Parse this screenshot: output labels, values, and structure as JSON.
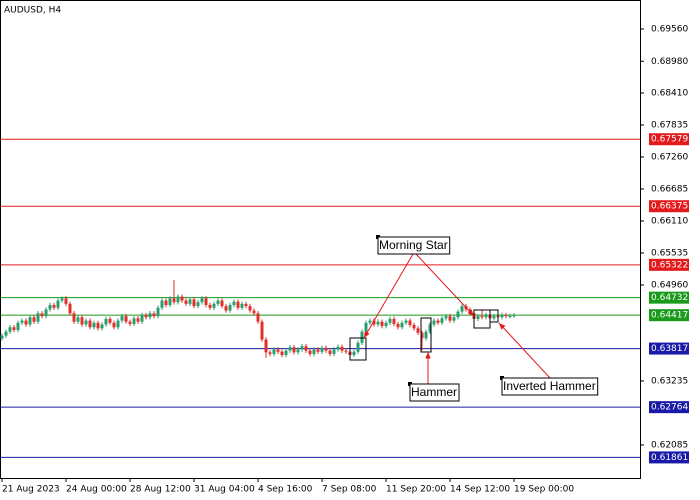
{
  "chart_data": {
    "type": "candlestick",
    "title": "AUDUSD, H4",
    "ylim": [
      0.61491,
      0.70081
    ],
    "yticks": [
      {
        "value": 0.6956,
        "label": "0.69560"
      },
      {
        "value": 0.6898,
        "label": "0.68980"
      },
      {
        "value": 0.6841,
        "label": "0.68410"
      },
      0.67835,
      {
        "value": 0.6726,
        "label": "0.67260"
      },
      0.66685,
      {
        "value": 0.6611,
        "label": "0.66110"
      },
      0.65535,
      {
        "value": 0.6496,
        "label": "0.64960"
      },
      0.63235,
      0.62085
    ],
    "levels": [
      {
        "value": 0.67579,
        "color": "#e31a1c"
      },
      {
        "value": 0.66375,
        "color": "#e31a1c"
      },
      {
        "value": 0.65322,
        "color": "#e31a1c"
      },
      {
        "value": 0.64732,
        "color": "#1a9a1a"
      },
      {
        "value": 0.64417,
        "color": "#1a9a1a"
      },
      {
        "value": 0.63817,
        "color": "#1a1aa8"
      },
      {
        "value": 0.62764,
        "color": "#1a1aa8"
      },
      {
        "value": 0.61861,
        "color": "#1a1aa8"
      }
    ],
    "up_color": "#2a9d6f",
    "down_color": "#e0302a",
    "annotations": [
      "Morning Star",
      "Hammer",
      "Inverted Hammer"
    ],
    "categories": [
      "21 Aug 2023",
      null,
      null,
      null,
      null,
      null,
      null,
      null,
      null,
      null,
      null,
      null,
      null,
      null,
      null,
      null,
      "24 Aug 00:00",
      null,
      null,
      null,
      null,
      null,
      null,
      null,
      null,
      null,
      null,
      null,
      null,
      null,
      null,
      null,
      "28 Aug 12:00",
      null,
      null,
      null,
      null,
      null,
      null,
      null,
      null,
      null,
      null,
      null,
      null,
      null,
      null,
      null,
      "31 Aug 04:00",
      null,
      null,
      null,
      null,
      null,
      null,
      null,
      null,
      null,
      null,
      null,
      null,
      null,
      null,
      null,
      "4 Sep 16:00",
      null,
      null,
      null,
      null,
      null,
      null,
      null,
      null,
      null,
      null,
      null,
      null,
      null,
      null,
      null,
      "7 Sep 08:00",
      null,
      null,
      null,
      null,
      null,
      null,
      null,
      null,
      null,
      null,
      null,
      null,
      null,
      null,
      null,
      "11 Sep 20:00",
      null,
      null,
      null,
      null,
      null,
      null,
      null,
      null,
      null,
      null,
      null,
      null,
      null,
      null,
      null,
      "14 Sep 12:00",
      null,
      null,
      null,
      null,
      null,
      null,
      null,
      null,
      null,
      null,
      null,
      null,
      null,
      null,
      null,
      "19 Sep 00:00"
    ],
    "ohlc": [
      [
        0.64,
        0.6409,
        0.6396,
        0.6405
      ],
      [
        0.6405,
        0.6416,
        0.6401,
        0.6412
      ],
      [
        0.6412,
        0.6424,
        0.6408,
        0.642
      ],
      [
        0.642,
        0.6424,
        0.6411,
        0.6415
      ],
      [
        0.6415,
        0.6432,
        0.6411,
        0.6428
      ],
      [
        0.6428,
        0.6436,
        0.6424,
        0.6432
      ],
      [
        0.6432,
        0.6436,
        0.6421,
        0.6425
      ],
      [
        0.6425,
        0.6442,
        0.6421,
        0.6438
      ],
      [
        0.6438,
        0.6442,
        0.6426,
        0.643
      ],
      [
        0.643,
        0.6449,
        0.6426,
        0.6445
      ],
      [
        0.6445,
        0.6449,
        0.6436,
        0.644
      ],
      [
        0.644,
        0.6456,
        0.6436,
        0.6452
      ],
      [
        0.6452,
        0.6464,
        0.6448,
        0.646
      ],
      [
        0.646,
        0.6464,
        0.6451,
        0.6455
      ],
      [
        0.6455,
        0.6472,
        0.6451,
        0.6468
      ],
      [
        0.6468,
        0.6476,
        0.6464,
        0.6472
      ],
      [
        0.6472,
        0.6476,
        0.6458,
        0.6462
      ],
      [
        0.6462,
        0.6466,
        0.6441,
        0.6445
      ],
      [
        0.6445,
        0.6449,
        0.6426,
        0.643
      ],
      [
        0.643,
        0.6442,
        0.6426,
        0.6438
      ],
      [
        0.6438,
        0.6442,
        0.6421,
        0.6425
      ],
      [
        0.6425,
        0.6436,
        0.6421,
        0.6432
      ],
      [
        0.6432,
        0.6436,
        0.6416,
        0.642
      ],
      [
        0.642,
        0.6432,
        0.6416,
        0.6428
      ],
      [
        0.6428,
        0.6432,
        0.6414,
        0.6418
      ],
      [
        0.6418,
        0.6429,
        0.6414,
        0.6425
      ],
      [
        0.6425,
        0.6439,
        0.6421,
        0.6435
      ],
      [
        0.6435,
        0.6439,
        0.6424,
        0.6428
      ],
      [
        0.6428,
        0.6432,
        0.6416,
        0.642
      ],
      [
        0.642,
        0.6436,
        0.6416,
        0.6432
      ],
      [
        0.6432,
        0.6444,
        0.6428,
        0.644
      ],
      [
        0.644,
        0.6444,
        0.6426,
        0.643
      ],
      [
        0.643,
        0.6434,
        0.6422,
        0.6426
      ],
      [
        0.6426,
        0.644,
        0.6422,
        0.6436
      ],
      [
        0.6436,
        0.644,
        0.6426,
        0.643
      ],
      [
        0.643,
        0.6446,
        0.6426,
        0.6442
      ],
      [
        0.6442,
        0.6446,
        0.6434,
        0.6438
      ],
      [
        0.6438,
        0.6449,
        0.6434,
        0.6445
      ],
      [
        0.6445,
        0.6449,
        0.6436,
        0.644
      ],
      [
        0.644,
        0.6459,
        0.6436,
        0.6455
      ],
      [
        0.6455,
        0.6472,
        0.6451,
        0.6468
      ],
      [
        0.6468,
        0.6472,
        0.6456,
        0.646
      ],
      [
        0.646,
        0.6476,
        0.6456,
        0.6472
      ],
      [
        0.6472,
        0.6505,
        0.6461,
        0.6465
      ],
      [
        0.6465,
        0.6479,
        0.6461,
        0.6475
      ],
      [
        0.6475,
        0.6479,
        0.6464,
        0.6468
      ],
      [
        0.6468,
        0.6472,
        0.6458,
        0.6462
      ],
      [
        0.6462,
        0.6474,
        0.6458,
        0.647
      ],
      [
        0.647,
        0.6474,
        0.6454,
        0.6458
      ],
      [
        0.6458,
        0.6469,
        0.6454,
        0.6465
      ],
      [
        0.6465,
        0.6476,
        0.6461,
        0.6472
      ],
      [
        0.6472,
        0.6476,
        0.6456,
        0.646
      ],
      [
        0.646,
        0.6464,
        0.6451,
        0.6455
      ],
      [
        0.6455,
        0.6466,
        0.6451,
        0.6462
      ],
      [
        0.6462,
        0.6472,
        0.6458,
        0.6468
      ],
      [
        0.6468,
        0.6472,
        0.6454,
        0.6458
      ],
      [
        0.6458,
        0.6462,
        0.6446,
        0.645
      ],
      [
        0.645,
        0.6464,
        0.6446,
        0.646
      ],
      [
        0.646,
        0.647,
        0.6456,
        0.6466
      ],
      [
        0.6466,
        0.647,
        0.6451,
        0.6455
      ],
      [
        0.6455,
        0.6466,
        0.6451,
        0.6462
      ],
      [
        0.6462,
        0.6466,
        0.6454,
        0.6458
      ],
      [
        0.6458,
        0.6462,
        0.6446,
        0.645
      ],
      [
        0.645,
        0.6454,
        0.6441,
        0.6445
      ],
      [
        0.6445,
        0.6449,
        0.6426,
        0.643
      ],
      [
        0.643,
        0.6434,
        0.6394,
        0.6398
      ],
      [
        0.6398,
        0.6402,
        0.6365,
        0.6375
      ],
      [
        0.6375,
        0.6379,
        0.6368,
        0.6372
      ],
      [
        0.6372,
        0.6384,
        0.6368,
        0.638
      ],
      [
        0.638,
        0.6384,
        0.6372,
        0.6376
      ],
      [
        0.6376,
        0.638,
        0.6366,
        0.637
      ],
      [
        0.637,
        0.6382,
        0.6366,
        0.6378
      ],
      [
        0.6378,
        0.6388,
        0.6374,
        0.6384
      ],
      [
        0.6384,
        0.6388,
        0.6371,
        0.6375
      ],
      [
        0.6375,
        0.6384,
        0.6371,
        0.638
      ],
      [
        0.638,
        0.639,
        0.6376,
        0.6386
      ],
      [
        0.6386,
        0.639,
        0.6374,
        0.6378
      ],
      [
        0.6378,
        0.6382,
        0.6368,
        0.6372
      ],
      [
        0.6372,
        0.6384,
        0.6368,
        0.638
      ],
      [
        0.638,
        0.6384,
        0.6372,
        0.6376
      ],
      [
        0.6376,
        0.6387,
        0.6372,
        0.6383
      ],
      [
        0.6383,
        0.6387,
        0.6374,
        0.6378
      ],
      [
        0.6378,
        0.6382,
        0.6368,
        0.6372
      ],
      [
        0.6372,
        0.6384,
        0.6368,
        0.638
      ],
      [
        0.638,
        0.6389,
        0.6376,
        0.6385
      ],
      [
        0.6385,
        0.6389,
        0.6374,
        0.6378
      ],
      [
        0.6378,
        0.6382,
        0.6372,
        0.6376
      ],
      [
        0.6376,
        0.638,
        0.6366,
        0.637
      ],
      [
        0.637,
        0.638,
        0.6366,
        0.6376
      ],
      [
        0.6376,
        0.6396,
        0.6372,
        0.6392
      ],
      [
        0.6392,
        0.6416,
        0.6388,
        0.6412
      ],
      [
        0.6412,
        0.6432,
        0.6408,
        0.6428
      ],
      [
        0.6428,
        0.6436,
        0.6424,
        0.6432
      ],
      [
        0.6432,
        0.6436,
        0.6421,
        0.6425
      ],
      [
        0.6425,
        0.6434,
        0.6421,
        0.643
      ],
      [
        0.643,
        0.6434,
        0.6418,
        0.6422
      ],
      [
        0.6422,
        0.6432,
        0.6418,
        0.6428
      ],
      [
        0.6428,
        0.6439,
        0.6424,
        0.6435
      ],
      [
        0.6435,
        0.6439,
        0.6422,
        0.6426
      ],
      [
        0.6426,
        0.643,
        0.6416,
        0.642
      ],
      [
        0.642,
        0.6432,
        0.6416,
        0.6428
      ],
      [
        0.6428,
        0.6436,
        0.6424,
        0.6432
      ],
      [
        0.6432,
        0.6436,
        0.642,
        0.6424
      ],
      [
        0.6424,
        0.6428,
        0.6414,
        0.6418
      ],
      [
        0.6418,
        0.6422,
        0.6406,
        0.641
      ],
      [
        0.641,
        0.6414,
        0.6378,
        0.64
      ],
      [
        0.64,
        0.6416,
        0.6396,
        0.6412
      ],
      [
        0.6412,
        0.6429,
        0.6408,
        0.6425
      ],
      [
        0.6425,
        0.6436,
        0.6421,
        0.6432
      ],
      [
        0.6432,
        0.6436,
        0.6424,
        0.6428
      ],
      [
        0.6428,
        0.644,
        0.6424,
        0.6436
      ],
      [
        0.6436,
        0.6444,
        0.6432,
        0.644
      ],
      [
        0.644,
        0.6444,
        0.6428,
        0.6432
      ],
      [
        0.6432,
        0.6442,
        0.6428,
        0.6438
      ],
      [
        0.6438,
        0.6452,
        0.6434,
        0.6448
      ],
      [
        0.6448,
        0.6462,
        0.6444,
        0.6458
      ],
      [
        0.6458,
        0.6462,
        0.6448,
        0.6452
      ],
      [
        0.6452,
        0.6456,
        0.6441,
        0.6445
      ],
      [
        0.6445,
        0.6449,
        0.6431,
        0.6435
      ],
      [
        0.6435,
        0.6444,
        0.6431,
        0.644
      ],
      [
        0.644,
        0.6452,
        0.6434,
        0.6438
      ],
      [
        0.6438,
        0.6446,
        0.6434,
        0.6442
      ],
      [
        0.6442,
        0.6446,
        0.6432,
        0.6436
      ],
      [
        0.6436,
        0.6444,
        0.6432,
        0.644
      ],
      [
        0.644,
        0.6444,
        0.6434,
        0.6438
      ],
      [
        0.6438,
        0.6446,
        0.6434,
        0.6442
      ],
      [
        0.6442,
        0.6446,
        0.6436,
        0.644
      ],
      [
        0.644,
        0.6444,
        0.6436,
        0.644
      ],
      [
        0.644,
        0.64457,
        0.64366,
        0.64417
      ]
    ]
  }
}
